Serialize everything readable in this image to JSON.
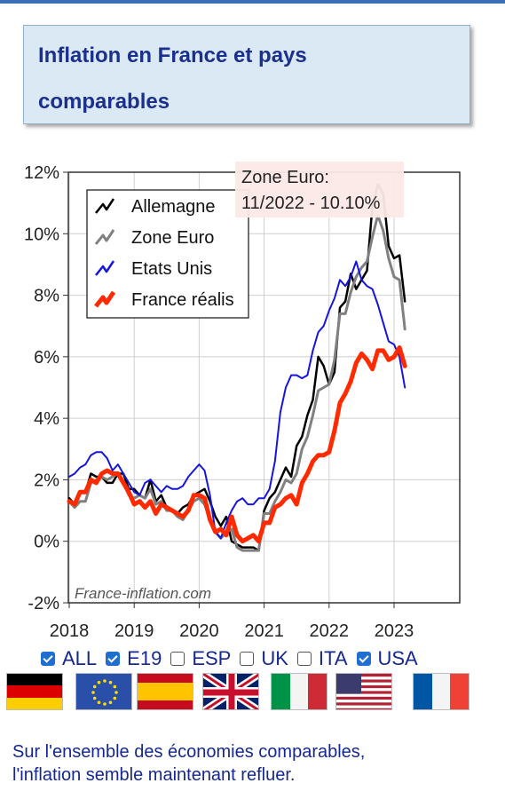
{
  "title": {
    "line1": "Inflation en France et pays",
    "line2": "comparables"
  },
  "colors": {
    "title_text": "#1b2f8c",
    "title_bg": "#dbe9f4",
    "germany": "#000000",
    "eurozone": "#808080",
    "usa": "#1515dd",
    "france": "#ff2a00",
    "link_text": "#16288f"
  },
  "chart_data": {
    "type": "line",
    "ylim": [
      -2,
      12
    ],
    "yticks": [
      "-2%",
      "0%",
      "2%",
      "4%",
      "6%",
      "8%",
      "10%",
      "12%"
    ],
    "xlim": [
      2018,
      2023.75
    ],
    "xticks": [
      "2018",
      "2019",
      "2020",
      "2021",
      "2022",
      "2023"
    ],
    "grid": true,
    "legend_position": "top-left",
    "watermark": "France-inflation.com",
    "tooltip": {
      "line1": "Zone Euro:",
      "line2": "11/2022 - 10.10%"
    },
    "series": [
      {
        "name": "Allemagne",
        "color": "#000000",
        "x_start": 2018.0,
        "x_step": 0.083333,
        "values": [
          1.4,
          1.2,
          1.6,
          1.6,
          2.2,
          2.1,
          2.1,
          1.9,
          1.9,
          2.2,
          2.2,
          1.7,
          1.7,
          1.5,
          1.4,
          2.0,
          1.3,
          1.5,
          1.1,
          1.0,
          0.9,
          1.1,
          1.2,
          1.5,
          1.6,
          1.7,
          1.3,
          0.8,
          0.5,
          0.8,
          0.0,
          -0.1,
          -0.2,
          -0.2,
          -0.2,
          -0.3,
          1.0,
          1.4,
          1.6,
          2.0,
          2.4,
          2.1,
          3.1,
          3.4,
          4.1,
          4.6,
          6.0,
          5.7,
          5.1,
          5.5,
          7.6,
          7.8,
          8.7,
          8.2,
          8.5,
          8.8,
          10.9,
          11.6,
          11.3,
          9.6,
          9.2,
          9.3,
          7.8
        ],
        "values_note_start": "2018-01"
      },
      {
        "name": "Zone Euro",
        "color": "#808080",
        "x_start": 2018.0,
        "x_step": 0.083333,
        "values": [
          1.3,
          1.1,
          1.3,
          1.3,
          1.9,
          2.0,
          2.1,
          2.0,
          2.1,
          2.2,
          1.9,
          1.5,
          1.4,
          1.5,
          1.4,
          1.7,
          1.2,
          1.3,
          1.0,
          1.0,
          0.8,
          0.7,
          1.0,
          1.3,
          1.4,
          1.2,
          0.7,
          0.3,
          0.1,
          0.3,
          0.4,
          -0.2,
          -0.3,
          -0.3,
          -0.3,
          -0.3,
          0.9,
          0.9,
          1.3,
          1.6,
          2.0,
          1.9,
          2.2,
          3.0,
          3.4,
          4.1,
          4.9,
          5.0,
          5.1,
          5.9,
          7.4,
          7.4,
          8.1,
          8.6,
          8.9,
          9.1,
          9.9,
          10.6,
          10.1,
          9.2,
          8.6,
          8.5,
          6.9
        ],
        "values_note_start": "2018-01"
      },
      {
        "name": "Etats Unis",
        "color": "#1515dd",
        "x_start": 2018.0,
        "x_step": 0.083333,
        "values": [
          2.1,
          2.2,
          2.4,
          2.5,
          2.8,
          2.9,
          2.9,
          2.7,
          2.3,
          2.5,
          2.2,
          1.9,
          1.6,
          1.5,
          1.9,
          2.0,
          1.8,
          1.6,
          1.8,
          1.7,
          1.7,
          1.8,
          2.1,
          2.3,
          2.5,
          2.3,
          1.5,
          0.3,
          0.1,
          0.6,
          1.0,
          1.3,
          1.4,
          1.2,
          1.2,
          1.4,
          1.4,
          1.7,
          2.6,
          4.2,
          5.0,
          5.4,
          5.4,
          5.3,
          5.4,
          6.2,
          6.8,
          7.0,
          7.5,
          7.9,
          8.5,
          8.3,
          8.6,
          9.1,
          8.5,
          8.3,
          8.2,
          7.7,
          7.1,
          6.5,
          6.4,
          6.0,
          5.0
        ],
        "values_note_start": "2018-01"
      },
      {
        "name": "France réalis",
        "color": "#ff2a00",
        "x_start": 2018.0,
        "x_step": 0.083333,
        "values": [
          1.3,
          1.2,
          1.6,
          1.6,
          2.0,
          1.9,
          2.2,
          2.3,
          2.2,
          2.2,
          1.9,
          1.6,
          1.2,
          1.3,
          1.1,
          1.3,
          0.9,
          1.2,
          1.1,
          1.0,
          0.9,
          0.8,
          1.0,
          1.5,
          1.5,
          1.4,
          0.7,
          0.3,
          0.4,
          0.2,
          0.8,
          0.2,
          0.0,
          0.1,
          0.2,
          0.0,
          0.6,
          0.6,
          1.1,
          1.2,
          1.4,
          1.5,
          1.2,
          1.9,
          2.2,
          2.6,
          2.8,
          2.8,
          2.9,
          3.6,
          4.5,
          4.8,
          5.2,
          5.8,
          6.1,
          5.9,
          5.6,
          6.2,
          6.2,
          5.9,
          6.0,
          6.3,
          5.7
        ],
        "values_note_start": "2018-01"
      }
    ]
  },
  "filters": [
    {
      "label": "ALL",
      "checked": true
    },
    {
      "label": "E19",
      "checked": true
    },
    {
      "label": "ESP",
      "checked": false
    },
    {
      "label": "UK",
      "checked": false
    },
    {
      "label": "ITA",
      "checked": false
    },
    {
      "label": "USA",
      "checked": true
    }
  ],
  "flags": [
    {
      "name": "germany-flag-icon"
    },
    {
      "name": "eu-flag-icon"
    },
    {
      "name": "spain-flag-icon"
    },
    {
      "name": "uk-flag-icon"
    },
    {
      "name": "italy-flag-icon"
    },
    {
      "name": "usa-flag-icon"
    },
    {
      "name": "france-flag-icon"
    }
  ],
  "footer": {
    "line1": "Sur l'ensemble des économies comparables,",
    "line2": "l'inflation semble maintenant refluer."
  }
}
